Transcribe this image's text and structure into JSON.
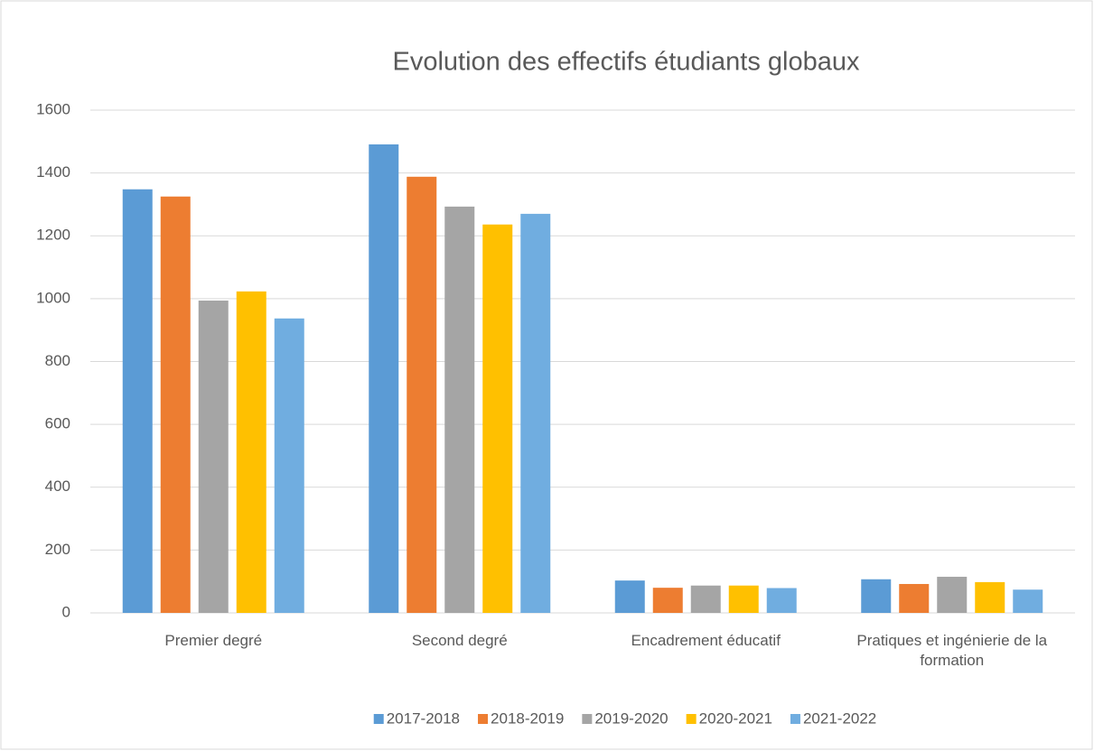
{
  "chart_data": {
    "type": "bar",
    "title": "Evolution des effectifs étudiants globaux",
    "categories": [
      "Premier degré",
      "Second degré",
      "Encadrement éducatif",
      "Pratiques et ingénierie de la formation"
    ],
    "series": [
      {
        "name": "2017-2018",
        "color": "#5b9bd5",
        "values": [
          1348,
          1491,
          103,
          107
        ]
      },
      {
        "name": "2018-2019",
        "color": "#ed7d31",
        "values": [
          1325,
          1388,
          80,
          92
        ]
      },
      {
        "name": "2019-2020",
        "color": "#a5a5a5",
        "values": [
          994,
          1293,
          87,
          115
        ]
      },
      {
        "name": "2020-2021",
        "color": "#ffc000",
        "values": [
          1023,
          1236,
          87,
          98
        ]
      },
      {
        "name": "2021-2022",
        "color": "#70ade0",
        "values": [
          937,
          1270,
          79,
          74
        ]
      }
    ],
    "ylim": [
      0,
      1600
    ],
    "yticks": [
      0,
      200,
      400,
      600,
      800,
      1000,
      1200,
      1400,
      1600
    ],
    "grid": true,
    "legend": "bottom"
  }
}
